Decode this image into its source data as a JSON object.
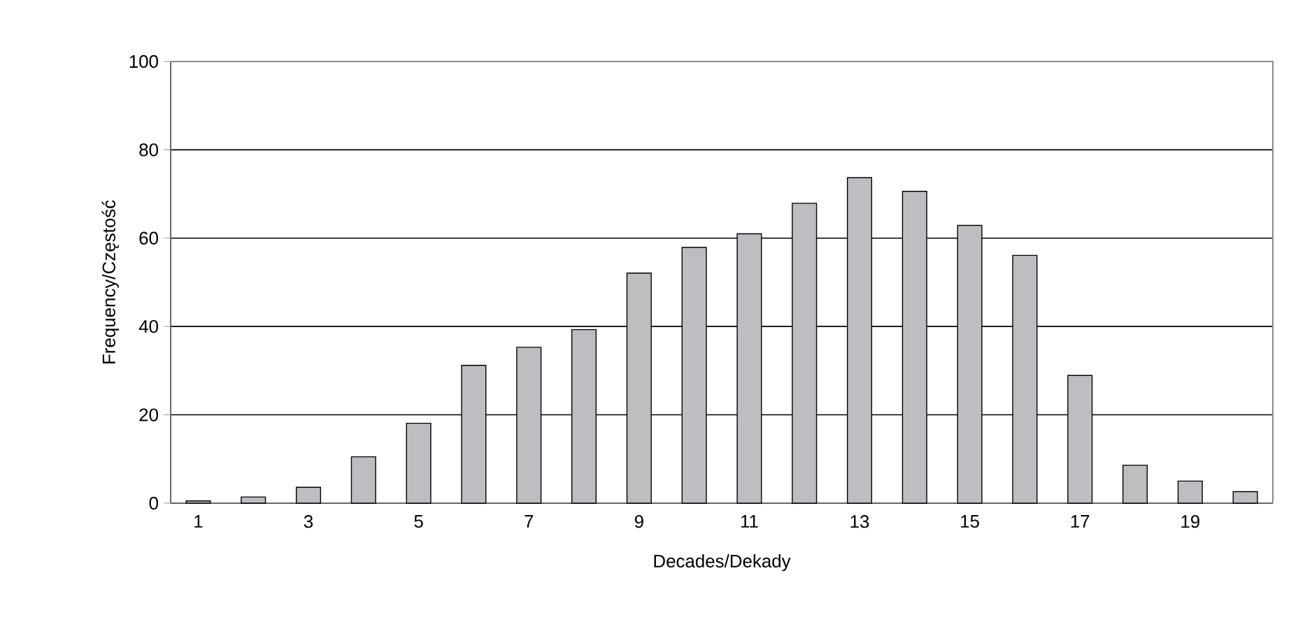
{
  "chart_data": {
    "type": "bar",
    "xlabel": "Decades/Dekady",
    "ylabel": "Frequency/Częstość",
    "categories": [
      "1",
      null,
      "3",
      null,
      "5",
      null,
      "7",
      null,
      "9",
      null,
      "11",
      null,
      "13",
      null,
      "15",
      null,
      "17",
      null,
      "19",
      null
    ],
    "values": [
      0.5,
      1.4,
      3.6,
      10.5,
      18.1,
      31.2,
      35.3,
      39.3,
      52.1,
      57.9,
      61.0,
      67.9,
      73.7,
      70.6,
      62.9,
      56.1,
      28.9,
      8.6,
      5.0,
      2.6
    ],
    "color": "#bdbec2",
    "ylim": [
      0,
      100
    ],
    "yticks": [
      0,
      20,
      40,
      60,
      80,
      100
    ],
    "grid": "y"
  }
}
